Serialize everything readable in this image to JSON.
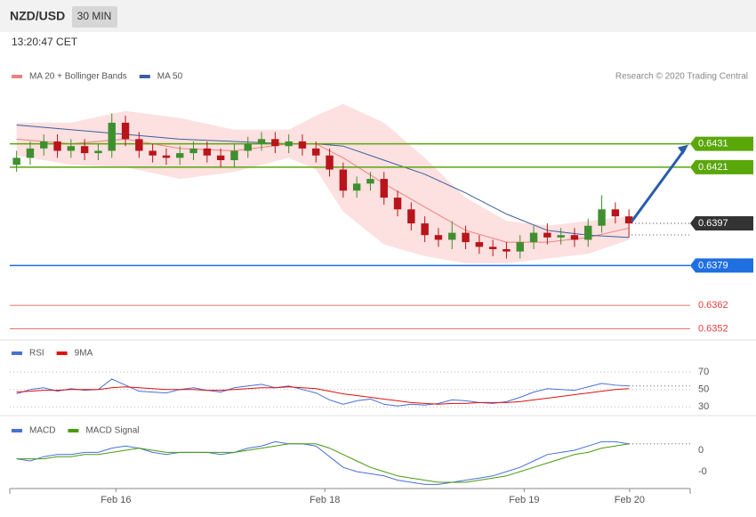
{
  "header": {
    "symbol": "NZD/USD",
    "timeframe": "30 MIN",
    "time": "13:20:47 CET",
    "credit": "Research © 2020 Trading Central"
  },
  "chart_data": [
    {
      "type": "candlestick",
      "xlim": [
        0,
        100
      ],
      "ylim": [
        0.6348,
        0.6462
      ],
      "up_color": "#3f8f2f",
      "down_color": "#b8141b",
      "x": [
        1,
        3,
        5,
        7,
        9,
        11,
        13,
        15,
        17,
        19,
        21,
        23,
        25,
        27,
        29,
        31,
        33,
        35,
        37,
        39,
        41,
        43,
        45,
        47,
        49,
        51,
        53,
        55,
        57,
        59,
        61,
        63,
        65,
        67,
        69,
        71,
        73,
        75,
        77,
        79,
        81,
        83,
        85,
        87,
        89,
        91
      ],
      "open": [
        0.6422,
        0.6425,
        0.6429,
        0.6432,
        0.6428,
        0.643,
        0.6427,
        0.6428,
        0.644,
        0.6433,
        0.6428,
        0.6426,
        0.6425,
        0.6427,
        0.6429,
        0.6426,
        0.6424,
        0.6428,
        0.6431,
        0.6433,
        0.643,
        0.6432,
        0.6429,
        0.6426,
        0.642,
        0.6411,
        0.6414,
        0.6416,
        0.6408,
        0.6403,
        0.6397,
        0.6392,
        0.639,
        0.6393,
        0.6389,
        0.6387,
        0.6386,
        0.6385,
        0.6389,
        0.6393,
        0.6391,
        0.6392,
        0.639,
        0.6396,
        0.6403,
        0.64
      ],
      "high": [
        0.6428,
        0.6432,
        0.6435,
        0.6435,
        0.6433,
        0.6433,
        0.6431,
        0.6444,
        0.6443,
        0.6436,
        0.6431,
        0.6429,
        0.643,
        0.6432,
        0.6432,
        0.6429,
        0.6431,
        0.6434,
        0.6436,
        0.6436,
        0.6435,
        0.6435,
        0.6432,
        0.6429,
        0.6423,
        0.6417,
        0.6419,
        0.6419,
        0.6411,
        0.6406,
        0.64,
        0.6395,
        0.6398,
        0.6396,
        0.6392,
        0.639,
        0.6389,
        0.6392,
        0.6396,
        0.6397,
        0.6395,
        0.6395,
        0.6399,
        0.6409,
        0.6406,
        0.6403
      ],
      "low": [
        0.6419,
        0.6422,
        0.6426,
        0.6425,
        0.6425,
        0.6424,
        0.6424,
        0.6425,
        0.643,
        0.6425,
        0.6423,
        0.6422,
        0.6422,
        0.6424,
        0.6423,
        0.6421,
        0.6421,
        0.6425,
        0.6428,
        0.6427,
        0.6427,
        0.6426,
        0.6423,
        0.6417,
        0.6408,
        0.6408,
        0.6411,
        0.6405,
        0.64,
        0.6394,
        0.6389,
        0.6387,
        0.6386,
        0.6386,
        0.6384,
        0.6383,
        0.6382,
        0.6382,
        0.6386,
        0.6388,
        0.6388,
        0.6387,
        0.6387,
        0.6393,
        0.6397,
        0.6391
      ],
      "close": [
        0.6425,
        0.6429,
        0.6432,
        0.6428,
        0.643,
        0.6427,
        0.6428,
        0.644,
        0.6433,
        0.6428,
        0.6426,
        0.6425,
        0.6427,
        0.6429,
        0.6426,
        0.6424,
        0.6428,
        0.6431,
        0.6433,
        0.643,
        0.6432,
        0.6429,
        0.6426,
        0.642,
        0.6411,
        0.6414,
        0.6416,
        0.6408,
        0.6403,
        0.6397,
        0.6392,
        0.639,
        0.6393,
        0.6389,
        0.6387,
        0.6386,
        0.6385,
        0.6389,
        0.6393,
        0.6391,
        0.6392,
        0.639,
        0.6396,
        0.6403,
        0.64,
        0.6397
      ],
      "bands": {
        "name": "MA 20 + Bollinger Bands",
        "color": "#f08080",
        "fill": "#fde0e0",
        "x": [
          1,
          9,
          17,
          25,
          33,
          41,
          45,
          49,
          55,
          61,
          67,
          73,
          79,
          85,
          91
        ],
        "values": [
          0.6433,
          0.6431,
          0.6433,
          0.6429,
          0.6428,
          0.6431,
          0.6431,
          0.6425,
          0.6414,
          0.6404,
          0.6394,
          0.6389,
          0.6389,
          0.6391,
          0.6395
        ],
        "upper": [
          0.644,
          0.644,
          0.6445,
          0.6442,
          0.6437,
          0.6437,
          0.6443,
          0.6448,
          0.644,
          0.6425,
          0.6408,
          0.6398,
          0.6396,
          0.6398,
          0.64
        ],
        "lower": [
          0.6426,
          0.6422,
          0.6421,
          0.6416,
          0.6419,
          0.6425,
          0.642,
          0.6402,
          0.6388,
          0.6383,
          0.638,
          0.638,
          0.6382,
          0.6384,
          0.639
        ]
      },
      "series": [
        {
          "name": "MA 50",
          "color": "#3a5f9e",
          "x": [
            1,
            9,
            17,
            25,
            33,
            41,
            45,
            49,
            55,
            61,
            67,
            73,
            79,
            85,
            91
          ],
          "values": [
            0.6439,
            0.6437,
            0.6435,
            0.6433,
            0.6432,
            0.6431,
            0.6431,
            0.643,
            0.6424,
            0.6418,
            0.641,
            0.6401,
            0.6394,
            0.6392,
            0.6391
          ]
        }
      ],
      "levels": [
        {
          "value": 0.6431,
          "color": "#5aa70a",
          "style": "boxed"
        },
        {
          "value": 0.6421,
          "color": "#5aa70a",
          "style": "boxed"
        },
        {
          "value": 0.6397,
          "color": "#333333",
          "style": "current"
        },
        {
          "value": 0.6379,
          "color": "#1f6fe0",
          "style": "boxed"
        },
        {
          "value": 0.6362,
          "color": "#e04040",
          "style": "plain"
        },
        {
          "value": 0.6352,
          "color": "#e04040",
          "style": "plain"
        }
      ]
    },
    {
      "type": "line",
      "xlim": [
        0,
        100
      ],
      "ylim": [
        20,
        106
      ],
      "yticks": [
        70,
        50,
        30
      ],
      "x": [
        1,
        3,
        5,
        7,
        9,
        11,
        13,
        15,
        17,
        19,
        21,
        23,
        25,
        27,
        29,
        31,
        33,
        35,
        37,
        39,
        41,
        43,
        45,
        47,
        49,
        51,
        53,
        55,
        57,
        59,
        61,
        63,
        65,
        67,
        69,
        71,
        73,
        75,
        77,
        79,
        81,
        83,
        85,
        87,
        89,
        91
      ],
      "series": [
        {
          "name": "RSI",
          "color": "#4a6fd8",
          "values": [
            45,
            50,
            52,
            48,
            51,
            49,
            50,
            62,
            55,
            48,
            47,
            46,
            50,
            52,
            49,
            47,
            52,
            54,
            56,
            52,
            54,
            50,
            46,
            38,
            33,
            37,
            39,
            33,
            31,
            33,
            32,
            34,
            38,
            37,
            35,
            34,
            36,
            41,
            47,
            51,
            50,
            49,
            53,
            57,
            55,
            54
          ]
        },
        {
          "name": "9MA",
          "color": "#e01010",
          "values": [
            47,
            48,
            49,
            49,
            50,
            50,
            50,
            52,
            53,
            52,
            51,
            50,
            50,
            50,
            49,
            49,
            50,
            51,
            52,
            52,
            53,
            52,
            51,
            48,
            45,
            43,
            41,
            39,
            37,
            35,
            34,
            33,
            34,
            34,
            35,
            35,
            35,
            36,
            38,
            40,
            42,
            44,
            46,
            48,
            50,
            51
          ]
        }
      ]
    },
    {
      "type": "line",
      "xlim": [
        0,
        100
      ],
      "ylim": [
        -0.00175,
        0.0015
      ],
      "yticks": [
        0,
        {
          "value": -0.001,
          "label": "-0"
        }
      ],
      "xticks": [
        {
          "value": 15.6,
          "label": "Feb 16"
        },
        {
          "value": 46.3,
          "label": "Feb 18"
        },
        {
          "value": 75.6,
          "label": "Feb 19"
        },
        {
          "value": 91.1,
          "label": "Feb 20"
        }
      ],
      "x": [
        1,
        3,
        5,
        7,
        9,
        11,
        13,
        15,
        17,
        19,
        21,
        23,
        25,
        27,
        29,
        31,
        33,
        35,
        37,
        39,
        41,
        43,
        45,
        47,
        49,
        51,
        53,
        55,
        57,
        59,
        61,
        63,
        65,
        67,
        69,
        71,
        73,
        75,
        77,
        79,
        81,
        83,
        85,
        87,
        89,
        91
      ],
      "series": [
        {
          "name": "MACD",
          "color": "#4a6fd8",
          "values": [
            -0.0004,
            -0.0005,
            -0.0003,
            -0.0002,
            -0.0002,
            -0.0001,
            -0.0001,
            0.0001,
            0.0002,
            0.0001,
            -0.0001,
            -0.0002,
            -0.0001,
            -0.0001,
            -0.0001,
            -0.0002,
            -0.0001,
            0.0001,
            0.0002,
            0.0004,
            0.0003,
            0.0003,
            0.0002,
            -0.0003,
            -0.0008,
            -0.001,
            -0.0011,
            -0.0012,
            -0.0014,
            -0.0015,
            -0.0016,
            -0.0016,
            -0.0015,
            -0.0014,
            -0.0013,
            -0.0012,
            -0.001,
            -0.0008,
            -0.0005,
            -0.0002,
            -0.0001,
            0.0,
            0.0002,
            0.0004,
            0.0004,
            0.0003
          ]
        },
        {
          "name": "MACD Signal",
          "color": "#4a9a10",
          "values": [
            -0.0004,
            -0.0004,
            -0.0004,
            -0.0003,
            -0.0003,
            -0.0002,
            -0.0002,
            -0.0001,
            0.0,
            0.0001,
            0.0,
            -0.0001,
            -0.0001,
            -0.0001,
            -0.0001,
            -0.0001,
            -0.0001,
            0.0,
            0.0001,
            0.0002,
            0.0003,
            0.0003,
            0.0003,
            0.0001,
            -0.0002,
            -0.0005,
            -0.0008,
            -0.001,
            -0.0012,
            -0.0013,
            -0.0014,
            -0.0015,
            -0.0015,
            -0.0015,
            -0.0014,
            -0.0013,
            -0.0012,
            -0.001,
            -0.0008,
            -0.0006,
            -0.0004,
            -0.0002,
            -0.0001,
            0.0001,
            0.0002,
            0.0003
          ]
        }
      ]
    }
  ]
}
